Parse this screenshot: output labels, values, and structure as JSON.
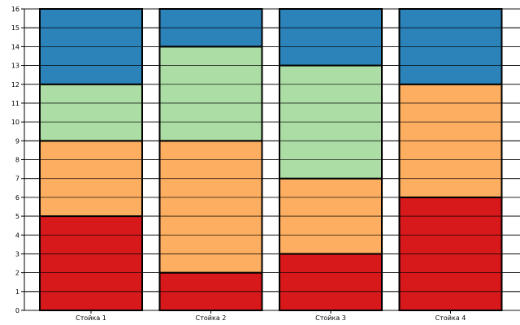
{
  "chart_data": {
    "type": "bar",
    "stacked": true,
    "title": "",
    "xlabel": "",
    "ylabel": "",
    "categories": [
      "Стойка 1",
      "Стойка 2",
      "Стойка 3",
      "Стойка 4"
    ],
    "ylim": [
      0,
      16
    ],
    "yticks": [
      "0",
      "1",
      "2",
      "3",
      "4",
      "5",
      "6",
      "7",
      "8",
      "9",
      "10",
      "11",
      "12",
      "13",
      "14",
      "15",
      "16"
    ],
    "grid": "horizontal",
    "stacks": [
      [
        {
          "start": 0,
          "end": 5,
          "color": "#d7191c"
        },
        {
          "start": 5,
          "end": 9,
          "color": "#fdae61"
        },
        {
          "start": 9,
          "end": 12,
          "color": "#abdda4"
        },
        {
          "start": 12,
          "end": 16,
          "color": "#2b83ba"
        }
      ],
      [
        {
          "start": 0,
          "end": 2,
          "color": "#d7191c"
        },
        {
          "start": 2,
          "end": 9,
          "color": "#fdae61"
        },
        {
          "start": 9,
          "end": 14,
          "color": "#abdda4"
        },
        {
          "start": 14,
          "end": 16,
          "color": "#2b83ba"
        }
      ],
      [
        {
          "start": 0,
          "end": 3,
          "color": "#d7191c"
        },
        {
          "start": 3,
          "end": 7,
          "color": "#fdae61"
        },
        {
          "start": 7,
          "end": 13,
          "color": "#abdda4"
        },
        {
          "start": 13,
          "end": 16,
          "color": "#2b83ba"
        }
      ],
      [
        {
          "start": 0,
          "end": 6,
          "color": "#d7191c"
        },
        {
          "start": 6,
          "end": 12,
          "color": "#fdae61"
        },
        {
          "start": 12,
          "end": 16,
          "color": "#2b83ba"
        }
      ]
    ]
  }
}
